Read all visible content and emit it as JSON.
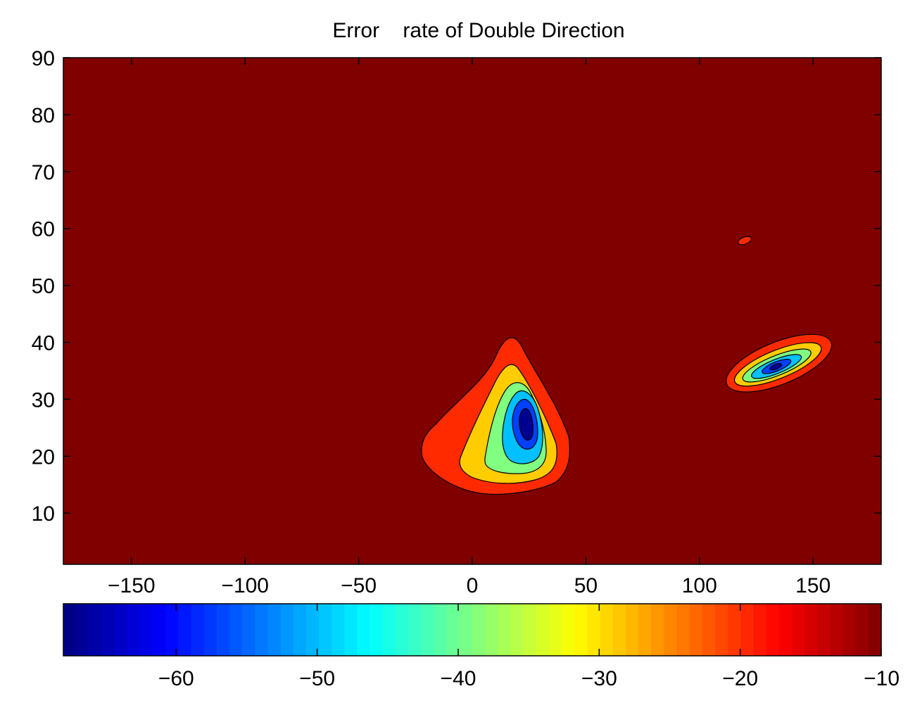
{
  "chart_data": {
    "type": "heatmap",
    "subtype": "filled-contour",
    "title": "Error    rate of Double Direction",
    "xlabel": "",
    "ylabel": "",
    "xlim": [
      -180,
      180
    ],
    "ylim": [
      1,
      90
    ],
    "x_ticks": [
      -150,
      -100,
      -50,
      0,
      50,
      100,
      150
    ],
    "x_tick_labels": [
      "−150",
      "−100",
      "−50",
      "0",
      "50",
      "100",
      "150"
    ],
    "y_ticks": [
      10,
      20,
      30,
      40,
      50,
      60,
      70,
      80,
      90
    ],
    "y_tick_labels": [
      "10",
      "20",
      "30",
      "40",
      "50",
      "60",
      "70",
      "80",
      "90"
    ],
    "grid": false,
    "background_level": -10,
    "colormap": "jet",
    "colorbar": {
      "orientation": "horizontal",
      "placement": "bottom",
      "range": [
        -68,
        -10
      ],
      "ticks": [
        -60,
        -50,
        -40,
        -30,
        -20,
        -10
      ],
      "tick_labels": [
        "−60",
        "−50",
        "−40",
        "−30",
        "−20",
        "−10"
      ]
    },
    "regions": [
      {
        "peak": [
          25,
          26
        ],
        "contour_levels": [
          -15,
          -25,
          -35,
          -45,
          -55,
          -62
        ],
        "fill_colors": [
          "#ff2a00",
          "#ffcc00",
          "#80ff80",
          "#00c0ff",
          "#0040ff",
          "#000090"
        ]
      },
      {
        "peak": [
          136,
          36
        ],
        "contour_levels": [
          -15,
          -25,
          -35,
          -45,
          -55,
          -62
        ],
        "fill_colors": [
          "#ff2a00",
          "#ffcc00",
          "#80ff80",
          "#00c0ff",
          "#0040ff",
          "#000090"
        ]
      },
      {
        "peak": [
          122,
          58
        ],
        "contour_levels": [
          -15
        ],
        "fill_colors": [
          "#ff2a00"
        ]
      }
    ],
    "colors": {
      "background_fill": "#800000",
      "contour_line": "#000000"
    }
  }
}
